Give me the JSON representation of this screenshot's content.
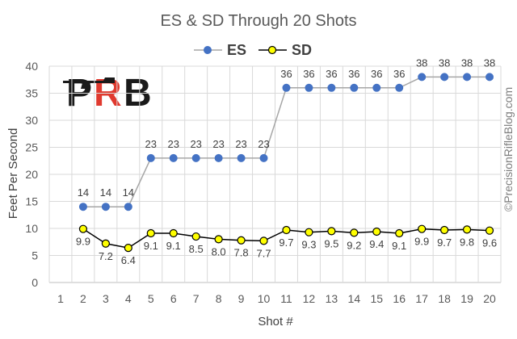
{
  "chart_data": {
    "type": "line",
    "title": "ES & SD Through 20 Shots",
    "xlabel": "Shot #",
    "ylabel": "Feet Per Second",
    "ylim": [
      0,
      40
    ],
    "yticks": [
      0,
      5,
      10,
      15,
      20,
      25,
      30,
      35,
      40
    ],
    "x": [
      1,
      2,
      3,
      4,
      5,
      6,
      7,
      8,
      9,
      10,
      11,
      12,
      13,
      14,
      15,
      16,
      17,
      18,
      19,
      20
    ],
    "grid": true,
    "legend_position": "top-center",
    "series": [
      {
        "name": "ES",
        "color": "#4472c4",
        "marker_fill": "#4472c4",
        "line_color": "#a6a6a6",
        "label_position": "above",
        "values": [
          null,
          14,
          14,
          14,
          23,
          23,
          23,
          23,
          23,
          23,
          36,
          36,
          36,
          36,
          36,
          36,
          38,
          38,
          38,
          38
        ],
        "labels": [
          null,
          "14",
          "14",
          "14",
          "23",
          "23",
          "23",
          "23",
          "23",
          "23",
          "36",
          "36",
          "36",
          "36",
          "36",
          "36",
          "38",
          "38",
          "38",
          "38"
        ]
      },
      {
        "name": "SD",
        "color": "#000000",
        "marker_fill": "#ffff00",
        "line_color": "#000000",
        "label_position": "below",
        "values": [
          null,
          9.9,
          7.2,
          6.4,
          9.1,
          9.1,
          8.5,
          8.0,
          7.8,
          7.7,
          9.7,
          9.3,
          9.5,
          9.2,
          9.4,
          9.1,
          9.9,
          9.7,
          9.8,
          9.6
        ],
        "labels": [
          null,
          "9.9",
          "7.2",
          "6.4",
          "9.1",
          "9.1",
          "8.5",
          "8.0",
          "7.8",
          "7.7",
          "9.7",
          "9.3",
          "9.5",
          "9.2",
          "9.4",
          "9.1",
          "9.9",
          "9.7",
          "9.8",
          "9.6"
        ]
      }
    ]
  },
  "logo": {
    "text": "PRB",
    "colors": [
      "#1a1a1a",
      "#e03a2f"
    ]
  },
  "copyright": "©PrecisionRifleBlog.com"
}
